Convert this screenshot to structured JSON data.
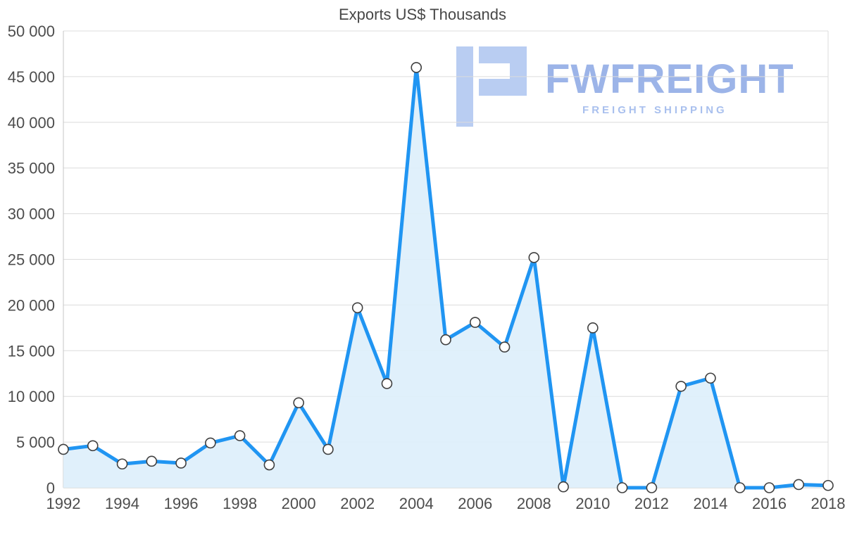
{
  "watermark": {
    "brand": "FWFREIGHT",
    "tagline": "FREIGHT SHIPPING",
    "icon_color": "#b9cdf2"
  },
  "chart_data": {
    "type": "area",
    "title": "Exports US$ Thousands",
    "xlabel": "",
    "ylabel": "",
    "x": [
      1992,
      1993,
      1994,
      1995,
      1996,
      1997,
      1998,
      1999,
      2000,
      2001,
      2002,
      2003,
      2004,
      2005,
      2006,
      2007,
      2008,
      2009,
      2010,
      2011,
      2012,
      2013,
      2014,
      2015,
      2016,
      2017,
      2018
    ],
    "values": [
      4200,
      4600,
      2600,
      2900,
      2700,
      4900,
      5700,
      2500,
      9300,
      4200,
      19700,
      11400,
      46000,
      16200,
      18100,
      15400,
      25200,
      100,
      17500,
      0,
      0,
      11100,
      12000,
      0,
      0,
      350,
      250
    ],
    "xlim": [
      1992,
      2018
    ],
    "ylim": [
      0,
      50000
    ],
    "x_ticks": [
      1992,
      1994,
      1996,
      1998,
      2000,
      2002,
      2004,
      2006,
      2008,
      2010,
      2012,
      2014,
      2016,
      2018
    ],
    "y_ticks": [
      0,
      5000,
      10000,
      15000,
      20000,
      25000,
      30000,
      35000,
      40000,
      45000,
      50000
    ],
    "y_tick_labels": [
      "0",
      "5 000",
      "10 000",
      "15 000",
      "20 000",
      "25 000",
      "30 000",
      "35 000",
      "40 000",
      "45 000",
      "50 000"
    ],
    "grid": "horizontal",
    "legend": "none",
    "colors": {
      "line": "#2095f2",
      "area": "#ddeefb",
      "marker_fill": "#ffffff",
      "marker_stroke": "#404040",
      "grid": "#dcdcdc",
      "axis": "#c6c6c6",
      "axis_text": "#4d4d4d",
      "title_text": "#474747"
    }
  }
}
